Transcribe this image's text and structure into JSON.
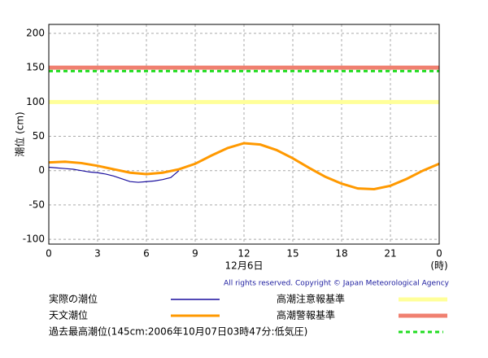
{
  "chart_data": {
    "type": "line",
    "y_label": "潮位 (cm)",
    "x_label": "12月6日",
    "x_unit": "(時)",
    "copyright": "All rights reserved. Copyright © Japan Meteorological Agency",
    "xlim": [
      0,
      24
    ],
    "xticks": [
      0,
      3,
      6,
      9,
      12,
      15,
      18,
      21,
      {
        "value": 24,
        "label": "0"
      }
    ],
    "ylim": [
      -107,
      213
    ],
    "yticks": [
      -100,
      -50,
      0,
      50,
      100,
      150,
      200
    ],
    "grid": true,
    "series": [
      {
        "name": "実際の潮位",
        "color": "#1a0f9e",
        "x": [
          0,
          0.5,
          1,
          1.5,
          2,
          2.5,
          3,
          3.5,
          4,
          4.5,
          5,
          5.5,
          6,
          6.5,
          7,
          7.5,
          8
        ],
        "values": [
          5,
          4,
          3,
          2,
          0,
          -2,
          -3,
          -5,
          -8,
          -12,
          -16,
          -17,
          -16,
          -15,
          -13,
          -10,
          0
        ]
      },
      {
        "name": "天文潮位",
        "color": "#ff9900",
        "x": [
          0,
          1,
          2,
          3,
          4,
          5,
          6,
          7,
          8,
          9,
          10,
          11,
          12,
          13,
          14,
          15,
          16,
          17,
          18,
          19,
          20,
          21,
          22,
          23,
          24
        ],
        "values": [
          12,
          13,
          11,
          7,
          2,
          -3,
          -5,
          -3,
          2,
          10,
          22,
          33,
          40,
          38,
          30,
          18,
          4,
          -9,
          -19,
          -26,
          -27,
          -22,
          -12,
          0,
          10
        ]
      }
    ],
    "reference_lines": [
      {
        "name": "高潮注意報基準",
        "value": 100,
        "color": "#ffff99"
      },
      {
        "name": "高潮警報基準",
        "value": 150,
        "color": "#f08070"
      },
      {
        "name": "過去最高潮位(145cm:2006年10月07日03時47分:低気圧)",
        "value": 145,
        "color": "#22dd22",
        "dashed": true
      }
    ]
  }
}
